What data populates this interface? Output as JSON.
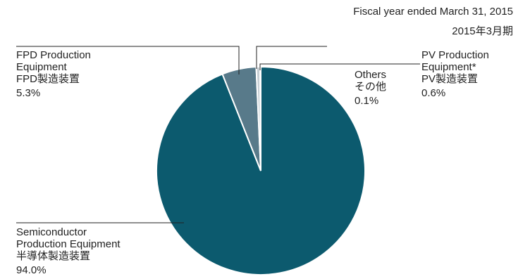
{
  "header": {
    "line1": "Fiscal year ended March 31, 2015",
    "line2": "2015年3月期"
  },
  "colors": {
    "semiconductor": "#0c5a6e",
    "fpd": "#587a8a",
    "pv": "#c6ced3",
    "others": "#c6ced3",
    "leader": "#222222"
  },
  "chart_data": {
    "type": "pie",
    "title": "",
    "slices": [
      {
        "key": "semiconductor",
        "value": 94.0,
        "label_en": "Semiconductor",
        "label_en2": "Production Equipment",
        "label_ja": "半導体製造装置",
        "pct": "94.0%"
      },
      {
        "key": "fpd",
        "value": 5.3,
        "label_en": "FPD Production",
        "label_en2": "Equipment",
        "label_ja": "FPD製造装置",
        "pct": "5.3%"
      },
      {
        "key": "pv",
        "value": 0.6,
        "label_en": "PV Production",
        "label_en2": "Equipment*",
        "label_ja": "PV製造装置",
        "pct": "0.6%"
      },
      {
        "key": "others",
        "value": 0.1,
        "label_en": "Others",
        "label_en2": "",
        "label_ja": "その他",
        "pct": "0.1%"
      }
    ]
  }
}
